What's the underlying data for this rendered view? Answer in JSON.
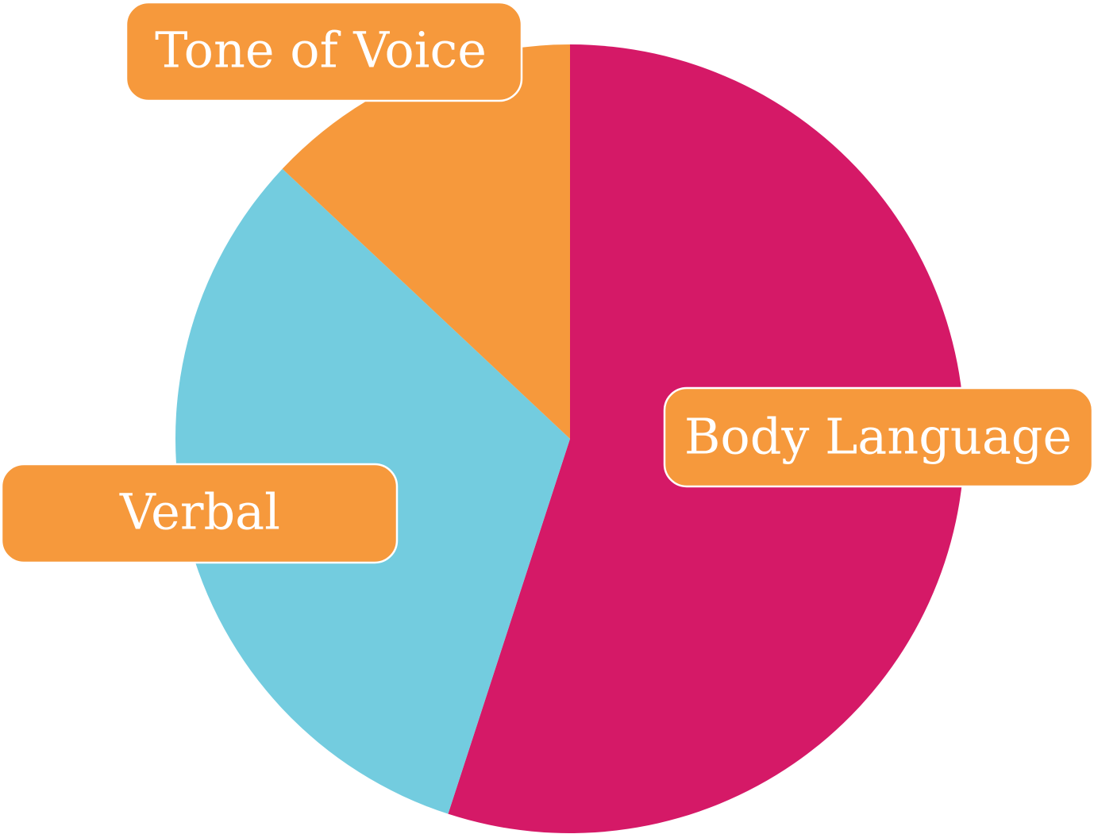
{
  "chart_data": {
    "type": "pie",
    "title": "",
    "categories": [
      "Body Language",
      "Verbal",
      "Tone of Voice"
    ],
    "values": [
      55,
      32,
      13
    ],
    "colors": [
      "#d51967",
      "#73ccdf",
      "#f6993c"
    ],
    "label_box_color": "#f6993c",
    "label_text_color": "#ffffff",
    "start_angle_deg": 0,
    "direction": "clockwise",
    "legend": "none"
  }
}
